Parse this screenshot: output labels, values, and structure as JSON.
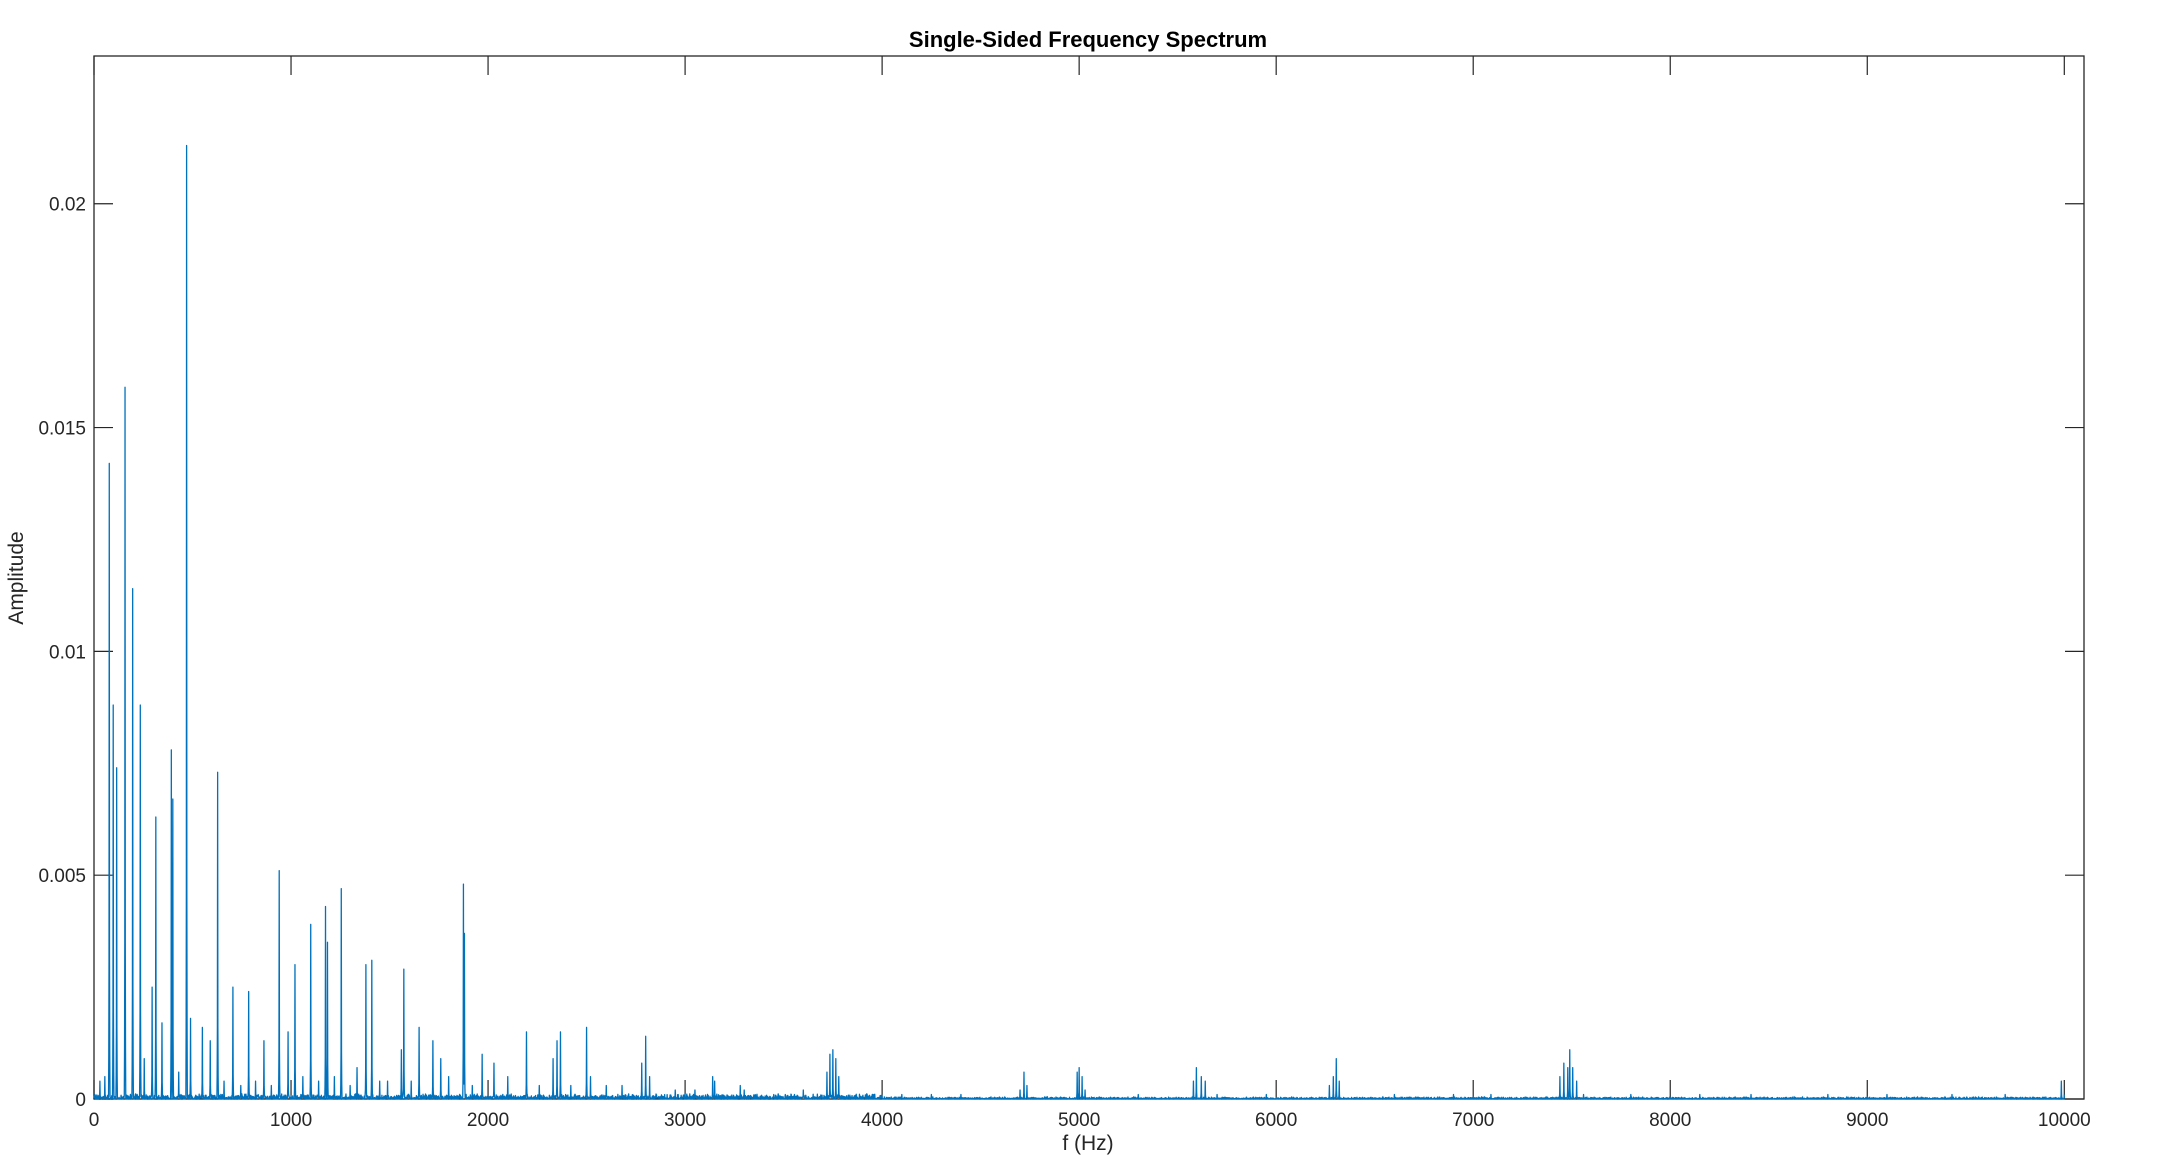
{
  "chart_data": {
    "type": "line",
    "title": "Single-Sided Frequency Spectrum",
    "xlabel": "f (Hz)",
    "ylabel": "Amplitude",
    "xlim": [
      0,
      10100
    ],
    "ylim": [
      0,
      0.0233
    ],
    "x_ticks": [
      0,
      1000,
      2000,
      3000,
      4000,
      5000,
      6000,
      7000,
      8000,
      9000,
      10000
    ],
    "x_tick_labels": [
      "0",
      "1000",
      "2000",
      "3000",
      "4000",
      "5000",
      "6000",
      "7000",
      "8000",
      "9000",
      "10000"
    ],
    "y_ticks": [
      0,
      0.005,
      0.01,
      0.015,
      0.02
    ],
    "y_tick_labels": [
      "0",
      "0.005",
      "0.01",
      "0.015",
      "0.02"
    ],
    "grid": false,
    "legend": "none",
    "series_color": "#0072BD",
    "peaks": [
      [
        30,
        0.0004
      ],
      [
        55,
        0.0005
      ],
      [
        78,
        0.0142
      ],
      [
        98,
        0.0088
      ],
      [
        115,
        0.0074
      ],
      [
        157,
        0.0159
      ],
      [
        196,
        0.0114
      ],
      [
        235,
        0.0088
      ],
      [
        255,
        0.0009
      ],
      [
        295,
        0.0025
      ],
      [
        314,
        0.0063
      ],
      [
        345,
        0.0017
      ],
      [
        392,
        0.0078
      ],
      [
        400,
        0.0067
      ],
      [
        430,
        0.0006
      ],
      [
        470,
        0.0213
      ],
      [
        490,
        0.0018
      ],
      [
        550,
        0.0016
      ],
      [
        590,
        0.0013
      ],
      [
        627,
        0.0073
      ],
      [
        660,
        0.0004
      ],
      [
        705,
        0.0025
      ],
      [
        745,
        0.0003
      ],
      [
        785,
        0.0024
      ],
      [
        820,
        0.0004
      ],
      [
        862,
        0.0013
      ],
      [
        900,
        0.0003
      ],
      [
        940,
        0.0051
      ],
      [
        985,
        0.0015
      ],
      [
        1020,
        0.003
      ],
      [
        1060,
        0.0005
      ],
      [
        1100,
        0.0039
      ],
      [
        1140,
        0.0004
      ],
      [
        1175,
        0.0043
      ],
      [
        1185,
        0.0035
      ],
      [
        1220,
        0.0005
      ],
      [
        1255,
        0.0047
      ],
      [
        1300,
        0.0003
      ],
      [
        1335,
        0.0007
      ],
      [
        1380,
        0.003
      ],
      [
        1410,
        0.0031
      ],
      [
        1450,
        0.0004
      ],
      [
        1490,
        0.0004
      ],
      [
        1560,
        0.0011
      ],
      [
        1572,
        0.0029
      ],
      [
        1610,
        0.0004
      ],
      [
        1650,
        0.0016
      ],
      [
        1720,
        0.0013
      ],
      [
        1760,
        0.0009
      ],
      [
        1800,
        0.0005
      ],
      [
        1875,
        0.0048
      ],
      [
        1880,
        0.0037
      ],
      [
        1920,
        0.0003
      ],
      [
        1970,
        0.001
      ],
      [
        2030,
        0.0008
      ],
      [
        2100,
        0.0005
      ],
      [
        2195,
        0.0015
      ],
      [
        2260,
        0.0003
      ],
      [
        2330,
        0.0009
      ],
      [
        2350,
        0.0013
      ],
      [
        2368,
        0.0015
      ],
      [
        2420,
        0.0003
      ],
      [
        2500,
        0.0016
      ],
      [
        2520,
        0.0005
      ],
      [
        2600,
        0.0003
      ],
      [
        2680,
        0.0003
      ],
      [
        2780,
        0.0008
      ],
      [
        2800,
        0.0014
      ],
      [
        2820,
        0.0005
      ],
      [
        2950,
        0.0002
      ],
      [
        3050,
        0.0002
      ],
      [
        3140,
        0.0005
      ],
      [
        3150,
        0.0004
      ],
      [
        3280,
        0.0003
      ],
      [
        3300,
        0.0002
      ],
      [
        3450,
        0.0001
      ],
      [
        3600,
        0.0002
      ],
      [
        3720,
        0.0006
      ],
      [
        3735,
        0.001
      ],
      [
        3750,
        0.0011
      ],
      [
        3765,
        0.0009
      ],
      [
        3780,
        0.0005
      ],
      [
        3950,
        0.0001
      ],
      [
        4100,
        0.0001
      ],
      [
        4250,
        0.0001
      ],
      [
        4400,
        0.0001
      ],
      [
        4700,
        0.0002
      ],
      [
        4720,
        0.0006
      ],
      [
        4735,
        0.0003
      ],
      [
        4990,
        0.0006
      ],
      [
        5000,
        0.0007
      ],
      [
        5015,
        0.0005
      ],
      [
        5030,
        0.0002
      ],
      [
        5300,
        0.0001
      ],
      [
        5580,
        0.0004
      ],
      [
        5595,
        0.0007
      ],
      [
        5620,
        0.0005
      ],
      [
        5640,
        0.0004
      ],
      [
        5700,
        0.0001
      ],
      [
        5950,
        0.0001
      ],
      [
        6270,
        0.0003
      ],
      [
        6290,
        0.0005
      ],
      [
        6305,
        0.0009
      ],
      [
        6320,
        0.0004
      ],
      [
        6600,
        0.0001
      ],
      [
        6900,
        0.0001
      ],
      [
        7090,
        0.0001
      ],
      [
        7440,
        0.0005
      ],
      [
        7460,
        0.0008
      ],
      [
        7480,
        0.0007
      ],
      [
        7490,
        0.0011
      ],
      [
        7505,
        0.0007
      ],
      [
        7525,
        0.0004
      ],
      [
        7560,
        0.0001
      ],
      [
        7800,
        0.0001
      ],
      [
        8150,
        0.0001
      ],
      [
        8410,
        0.0001
      ],
      [
        8800,
        0.0001
      ],
      [
        9100,
        0.0001
      ],
      [
        9430,
        0.0001
      ],
      [
        9700,
        0.0001
      ],
      [
        9985,
        0.0004
      ],
      [
        10000,
        0.0001
      ]
    ]
  }
}
